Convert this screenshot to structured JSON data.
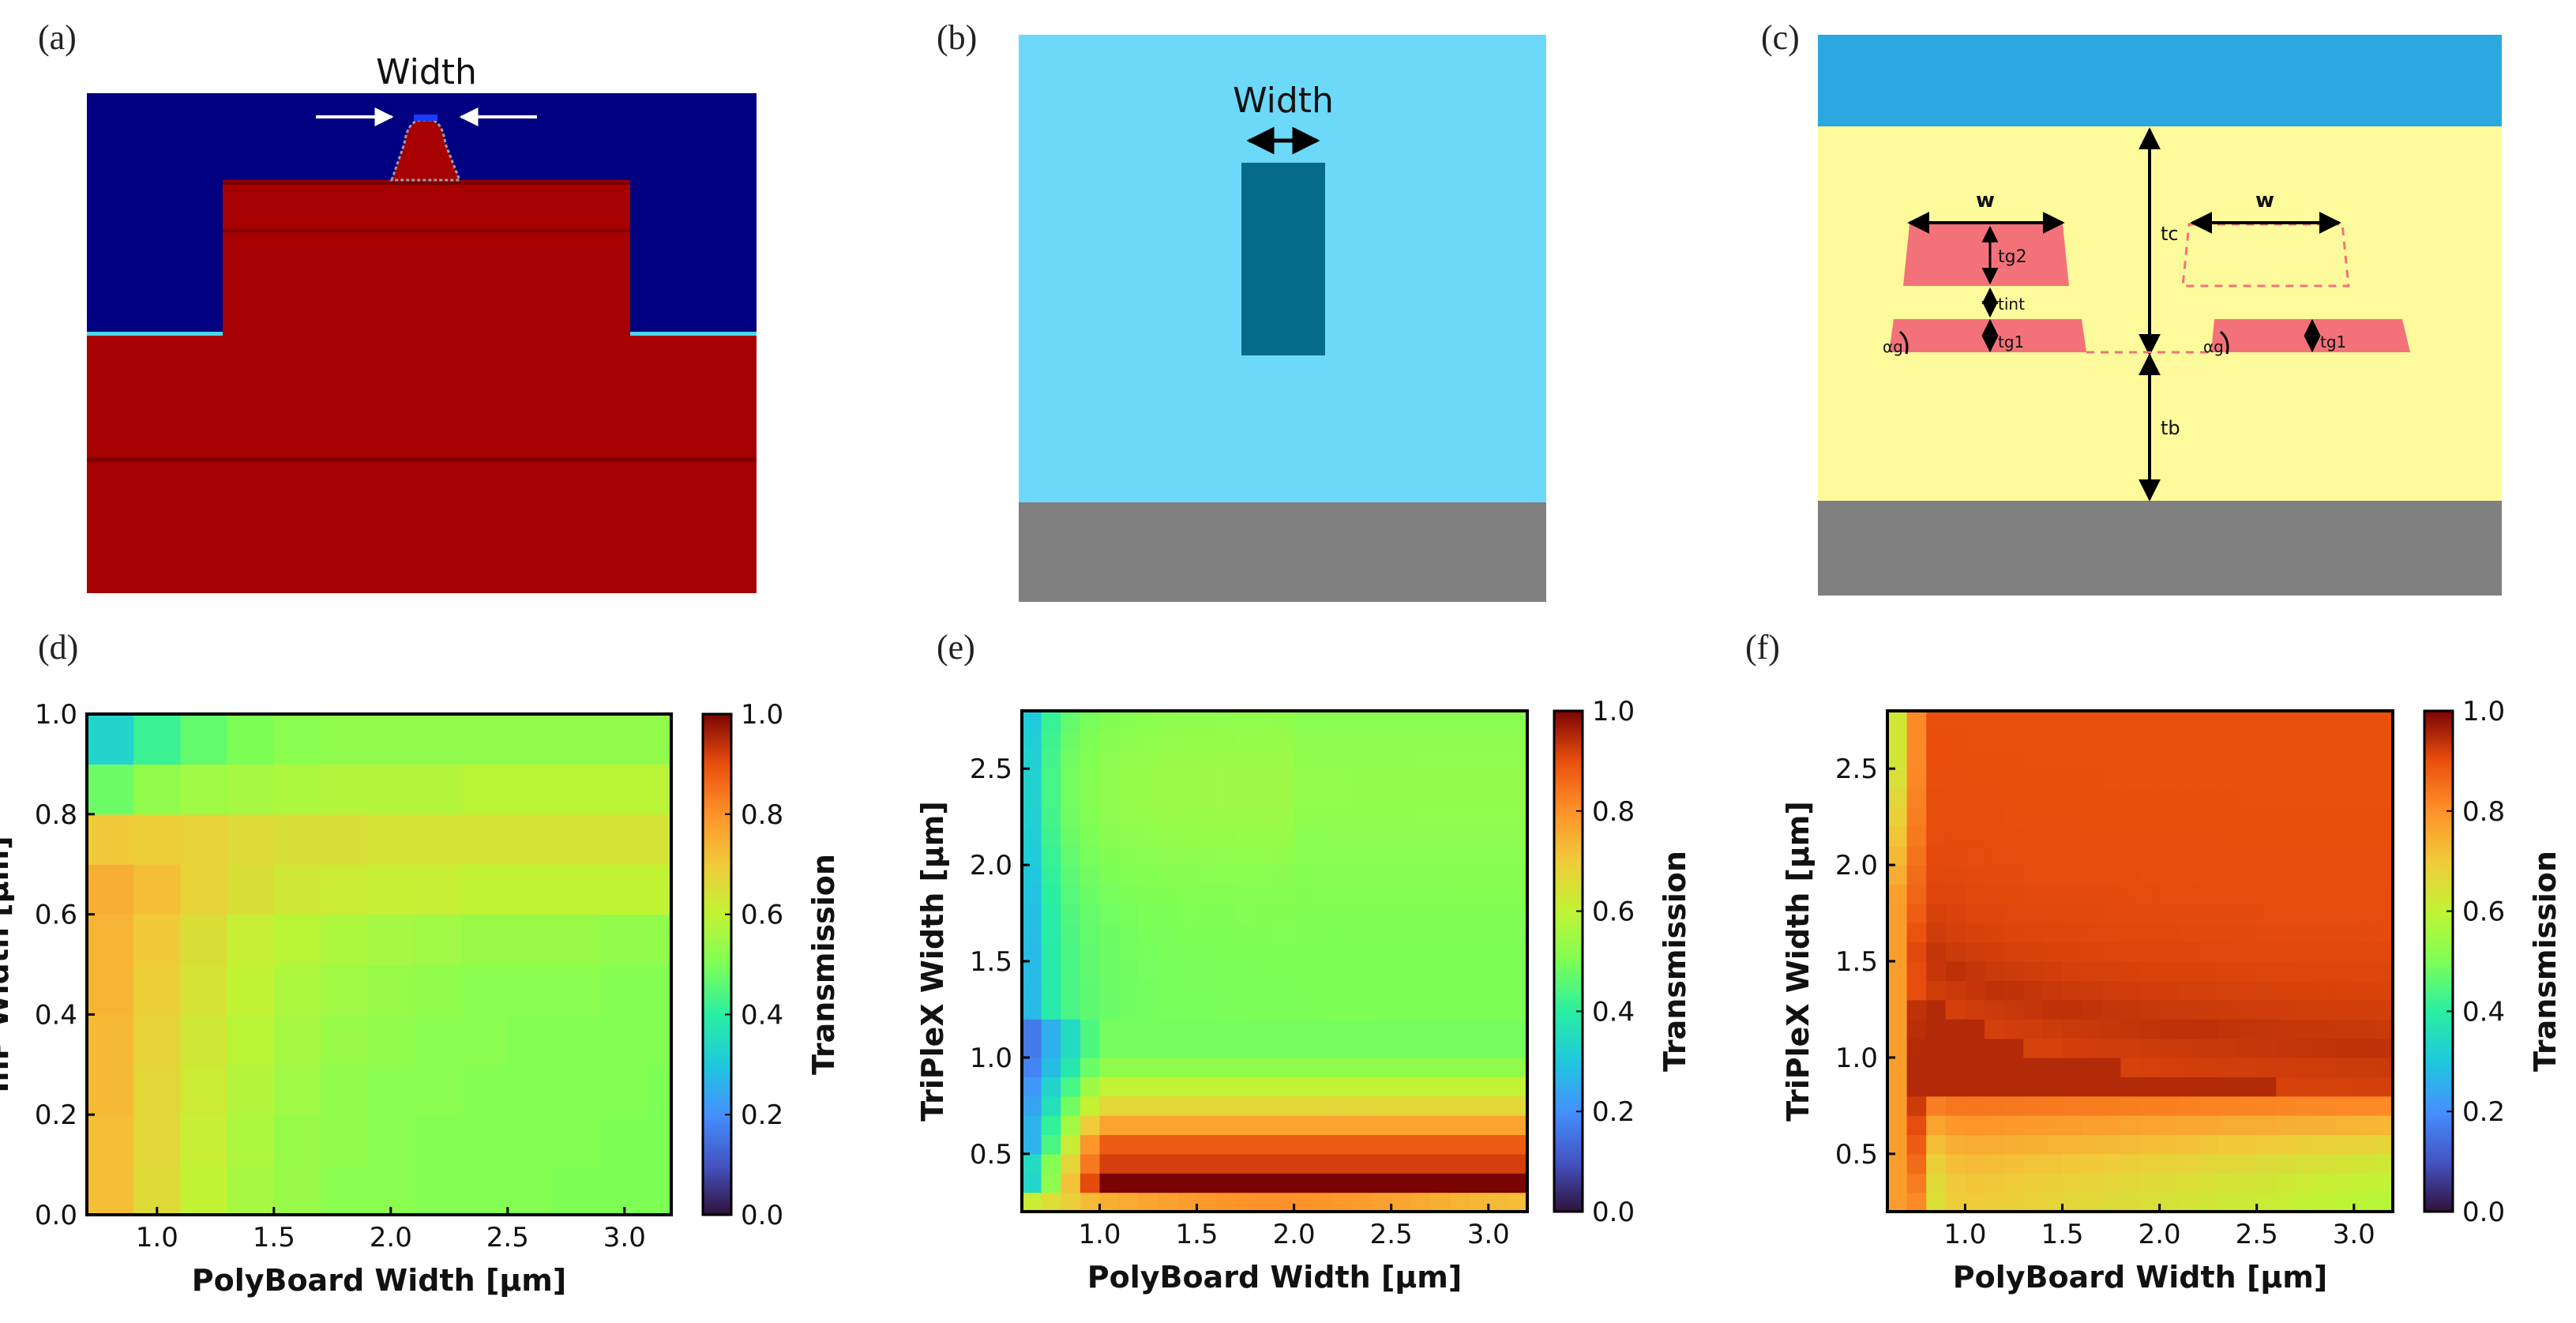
{
  "panels": {
    "a": {
      "label": "(a)",
      "width_label": "Width"
    },
    "b": {
      "label": "(b)",
      "width_label": "Width"
    },
    "c": {
      "label": "(c)",
      "w_left": "w",
      "w_right": "w",
      "t_g2": "tg2",
      "t_int": "tint",
      "t_g1_left": "tg1",
      "t_g1_right": "tg1",
      "t_c": "tc",
      "t_b": "tb",
      "alpha_left": "αg",
      "alpha_right": "αg"
    },
    "d": {
      "label": "(d)"
    },
    "e": {
      "label": "(e)"
    },
    "f": {
      "label": "(f)"
    }
  },
  "colors": {
    "inp_bg": "#000080",
    "inp_red": "#a60000",
    "inp_line": "#7a0000",
    "inp_cyan": "#4fd6ee",
    "triplex_bg": "#6cd9fb",
    "triplex_core": "#066b8a",
    "substrate": "#808080",
    "poly_top": "#2aa8df",
    "poly_clad": "#fdfa9b",
    "poly_core": "#f3727a"
  },
  "chart_data": [
    {
      "panel": "d",
      "type": "heatmap",
      "xlabel": "PolyBoard Width [μm]",
      "ylabel": "InP Width [μm]",
      "xlim": [
        0.7,
        3.2
      ],
      "ylim": [
        0.0,
        1.0
      ],
      "xticks": [
        "1.0",
        "1.5",
        "2.0",
        "2.5",
        "3.0"
      ],
      "yticks": [
        "0.0",
        "0.2",
        "0.4",
        "0.6",
        "0.8",
        "1.0"
      ],
      "colorbar": {
        "label": "Transmission",
        "range": [
          0.0,
          1.0
        ],
        "ticks": [
          "0.0",
          "0.2",
          "0.4",
          "0.6",
          "0.8",
          "1.0"
        ]
      },
      "x": [
        0.8,
        1.0,
        1.2,
        1.4,
        1.6,
        1.8,
        2.0,
        2.2,
        2.4,
        2.6,
        2.8,
        3.0,
        3.2
      ],
      "y": [
        0.05,
        0.15,
        0.25,
        0.35,
        0.45,
        0.55,
        0.65,
        0.75,
        0.85,
        0.95
      ],
      "values": [
        [
          0.72,
          0.66,
          0.6,
          0.56,
          0.54,
          0.52,
          0.52,
          0.51,
          0.51,
          0.51,
          0.5,
          0.5,
          0.5
        ],
        [
          0.72,
          0.67,
          0.61,
          0.57,
          0.54,
          0.53,
          0.52,
          0.51,
          0.51,
          0.51,
          0.51,
          0.5,
          0.5
        ],
        [
          0.73,
          0.67,
          0.62,
          0.58,
          0.55,
          0.53,
          0.52,
          0.52,
          0.51,
          0.51,
          0.51,
          0.51,
          0.5
        ],
        [
          0.73,
          0.68,
          0.63,
          0.59,
          0.56,
          0.54,
          0.53,
          0.52,
          0.52,
          0.51,
          0.51,
          0.51,
          0.51
        ],
        [
          0.74,
          0.69,
          0.64,
          0.6,
          0.57,
          0.55,
          0.54,
          0.53,
          0.52,
          0.52,
          0.52,
          0.51,
          0.51
        ],
        [
          0.74,
          0.7,
          0.65,
          0.61,
          0.59,
          0.57,
          0.56,
          0.55,
          0.54,
          0.54,
          0.54,
          0.53,
          0.53
        ],
        [
          0.75,
          0.72,
          0.68,
          0.65,
          0.63,
          0.62,
          0.61,
          0.61,
          0.6,
          0.6,
          0.6,
          0.6,
          0.6
        ],
        [
          0.7,
          0.69,
          0.68,
          0.66,
          0.65,
          0.65,
          0.64,
          0.64,
          0.64,
          0.64,
          0.64,
          0.64,
          0.64
        ],
        [
          0.48,
          0.53,
          0.55,
          0.56,
          0.57,
          0.58,
          0.58,
          0.58,
          0.59,
          0.59,
          0.59,
          0.59,
          0.59
        ],
        [
          0.33,
          0.42,
          0.47,
          0.5,
          0.52,
          0.53,
          0.53,
          0.53,
          0.53,
          0.53,
          0.53,
          0.53,
          0.53
        ]
      ]
    },
    {
      "panel": "e",
      "type": "heatmap",
      "xlabel": "PolyBoard Width [μm]",
      "ylabel": "TriPleX Width [μm]",
      "xlim": [
        0.6,
        3.2
      ],
      "ylim": [
        0.2,
        2.8
      ],
      "xticks": [
        "1.0",
        "1.5",
        "2.0",
        "2.5",
        "3.0"
      ],
      "yticks": [
        "0.5",
        "1.0",
        "1.5",
        "2.0",
        "2.5"
      ],
      "colorbar": {
        "label": "Transmission",
        "range": [
          0.0,
          1.0
        ],
        "ticks": [
          "0.0",
          "0.2",
          "0.4",
          "0.6",
          "0.8",
          "1.0"
        ]
      },
      "x": [
        0.6,
        0.7,
        0.8,
        0.9,
        1.0,
        1.1,
        1.2,
        1.3,
        1.4,
        1.5,
        1.6,
        1.7,
        1.8,
        1.9,
        2.0,
        2.1,
        2.2,
        2.3,
        2.4,
        2.5,
        2.6,
        2.7,
        2.8,
        2.9,
        3.0,
        3.1
      ],
      "y": [
        0.2,
        0.3,
        0.4,
        0.5,
        0.6,
        0.7,
        0.8,
        0.9,
        1.0,
        1.1,
        1.2,
        1.3,
        1.4,
        1.5,
        1.6,
        1.7,
        1.8,
        1.9,
        2.0,
        2.1,
        2.2,
        2.3,
        2.4,
        2.5,
        2.6,
        2.7
      ],
      "line_mode": "e"
    },
    {
      "panel": "f",
      "type": "heatmap",
      "xlabel": "PolyBoard Width [μm]",
      "ylabel": "TriPleX Width [μm]",
      "xlim": [
        0.6,
        3.2
      ],
      "ylim": [
        0.2,
        2.8
      ],
      "xticks": [
        "1.0",
        "1.5",
        "2.0",
        "2.5",
        "3.0"
      ],
      "yticks": [
        "0.5",
        "1.0",
        "1.5",
        "2.0",
        "2.5"
      ],
      "colorbar": {
        "label": "Transmission",
        "range": [
          0.0,
          1.0
        ],
        "ticks": [
          "0.0",
          "0.2",
          "0.4",
          "0.6",
          "0.8",
          "1.0"
        ]
      },
      "x": [
        0.6,
        0.7,
        0.8,
        0.9,
        1.0,
        1.1,
        1.2,
        1.3,
        1.4,
        1.5,
        1.6,
        1.7,
        1.8,
        1.9,
        2.0,
        2.1,
        2.2,
        2.3,
        2.4,
        2.5,
        2.6,
        2.7,
        2.8,
        2.9,
        3.0,
        3.1
      ],
      "y": [
        0.2,
        0.3,
        0.4,
        0.5,
        0.6,
        0.7,
        0.8,
        0.9,
        1.0,
        1.1,
        1.2,
        1.3,
        1.4,
        1.5,
        1.6,
        1.7,
        1.8,
        1.9,
        2.0,
        2.1,
        2.2,
        2.3,
        2.4,
        2.5,
        2.6,
        2.7
      ],
      "line_mode": "f"
    }
  ]
}
